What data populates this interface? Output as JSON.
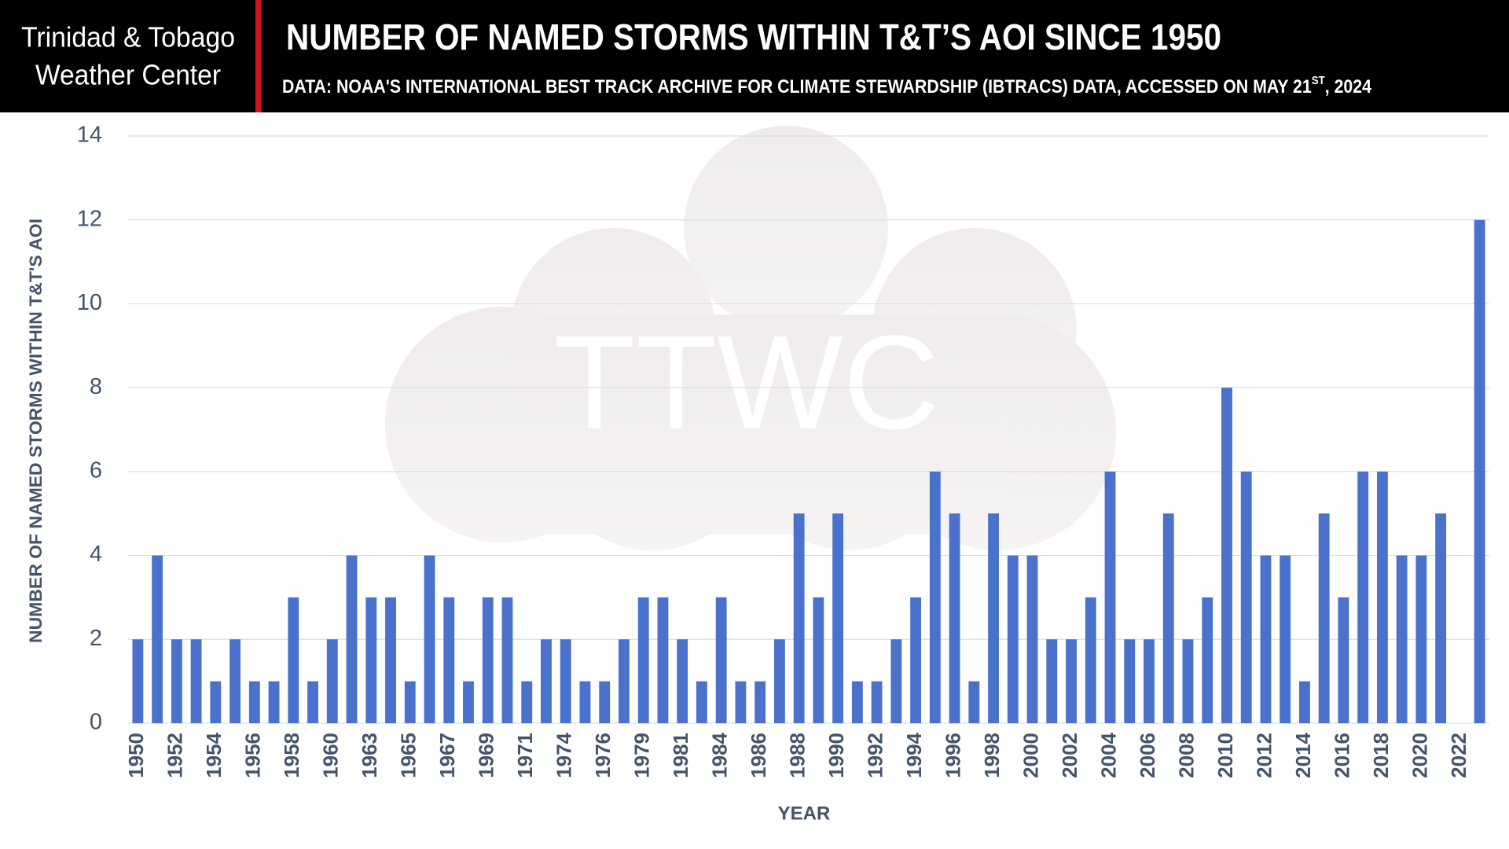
{
  "brand": [
    "Trinidad & Tobago",
    "Weather Center"
  ],
  "watermark": "TTWC",
  "chart_data": {
    "type": "bar",
    "title": "NUMBER OF NAMED STORMS WITHIN T&T’S AOI SINCE 1950",
    "subtitle": [
      "DATA: NOAA'S INTERNATIONAL BEST TRACK ARCHIVE FOR CLIMATE STEWARDSHIP (IBTRACS) DATA, ACCESSED ON MAY 21",
      "ST",
      ", 2024"
    ],
    "x_label": "YEAR",
    "y_label": "NUMBER OF NAMED STORMS WITHIN T&T'S AOI",
    "categories": [
      "1950",
      null,
      "1952",
      null,
      "1954",
      null,
      "1956",
      null,
      "1958",
      null,
      "1960",
      null,
      "1963",
      null,
      "1965",
      null,
      "1967",
      null,
      "1969",
      null,
      "1971",
      null,
      "1974",
      null,
      "1976",
      null,
      "1979",
      null,
      "1981",
      null,
      "1984",
      null,
      "1986",
      null,
      "1988",
      null,
      "1990",
      null,
      "1992",
      null,
      "1994",
      null,
      "1996",
      null,
      "1998",
      null,
      "2000",
      null,
      "2002",
      null,
      "2004",
      null,
      "2006",
      null,
      "2008",
      null,
      "2010",
      null,
      "2012",
      null,
      "2014",
      null,
      "2016",
      null,
      "2018",
      null,
      "2020",
      null,
      "2022",
      null
    ],
    "values": [
      2,
      4,
      2,
      2,
      1,
      2,
      1,
      1,
      3,
      1,
      2,
      4,
      3,
      3,
      1,
      4,
      3,
      1,
      3,
      3,
      1,
      2,
      2,
      1,
      1,
      2,
      3,
      3,
      2,
      1,
      3,
      1,
      1,
      2,
      5,
      3,
      5,
      1,
      1,
      2,
      3,
      6,
      5,
      1,
      5,
      4,
      4,
      2,
      2,
      3,
      6,
      2,
      2,
      5,
      2,
      3,
      8,
      6,
      4,
      4,
      1,
      5,
      3,
      6,
      6,
      4,
      4,
      5,
      0,
      12
    ],
    "color": "#4a72cc",
    "ylim": [
      0,
      14
    ],
    "yticks": [
      0,
      2,
      4,
      6,
      8,
      10,
      12,
      14
    ],
    "grid": true
  }
}
